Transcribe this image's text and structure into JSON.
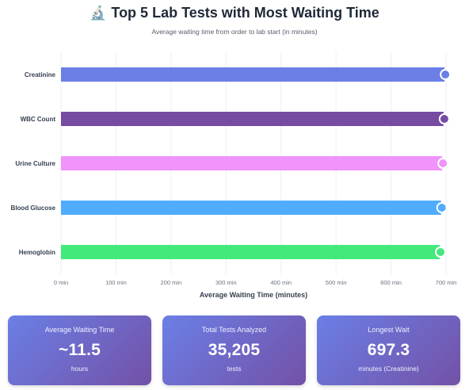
{
  "header": {
    "icon": "microscope-icon",
    "icon_glyph": "🔬",
    "title": "Top 5 Lab Tests with Most Waiting Time",
    "subtitle": "Average waiting time from order to lab start (in minutes)"
  },
  "chart_data": {
    "type": "bar",
    "orientation": "horizontal",
    "categories": [
      "Creatinine",
      "WBC Count",
      "Urine Culture",
      "Blood Glucose",
      "Hemoglobin"
    ],
    "values": [
      697.3,
      695.5,
      693.0,
      691.0,
      688.5
    ],
    "colors": [
      "#6b7fe6",
      "#764ba2",
      "#f093fb",
      "#4facfe",
      "#43e97b"
    ],
    "x_ticks": [
      "0 min",
      "100 min",
      "200 min",
      "300 min",
      "400 min",
      "500 min",
      "600 min",
      "700 min"
    ],
    "xlim": [
      0,
      700
    ],
    "xlabel": "Average Waiting Time (minutes)",
    "ylabel": "",
    "grid": true,
    "legend": "none"
  },
  "cards": [
    {
      "label": "Average Waiting Time",
      "value": "~11.5",
      "unit": "hours"
    },
    {
      "label": "Total Tests Analyzed",
      "value": "35,205",
      "unit": "tests"
    },
    {
      "label": "Longest Wait",
      "value": "697.3",
      "unit": "minutes (Creatinine)"
    }
  ]
}
